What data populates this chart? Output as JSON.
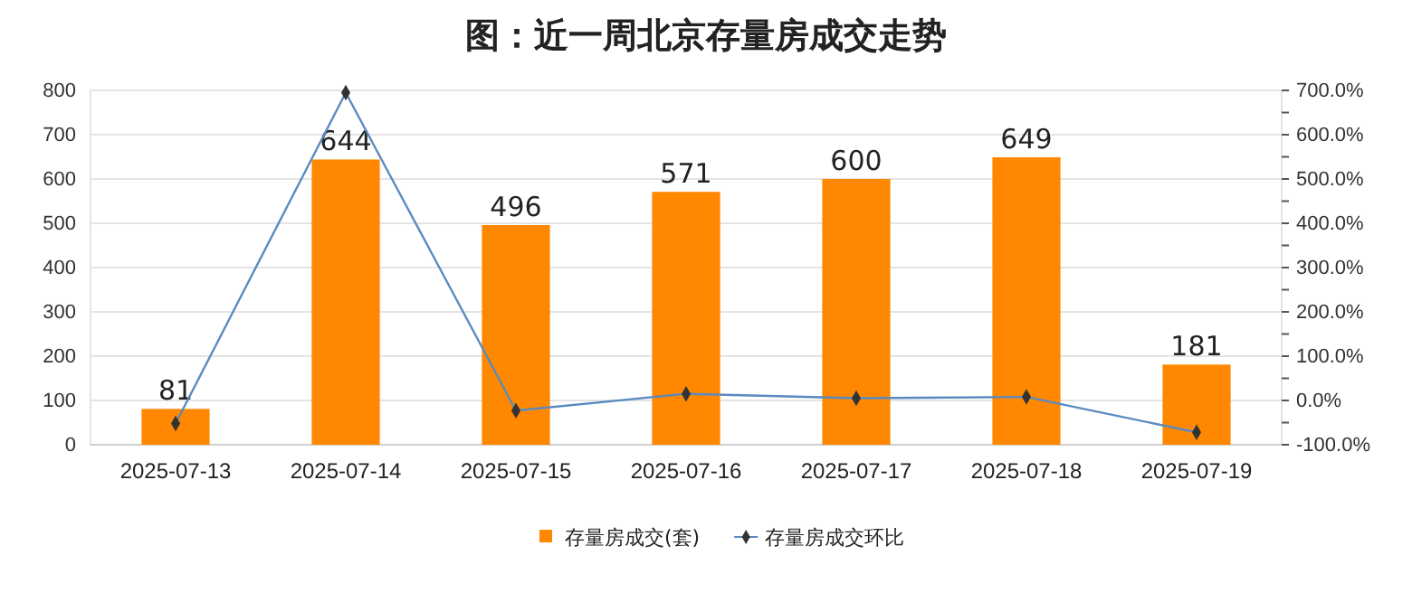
{
  "chart_data": {
    "type": "bar",
    "title": "图：近一周北京存量房成交走势",
    "categories": [
      "2025-07-13",
      "2025-07-14",
      "2025-07-15",
      "2025-07-16",
      "2025-07-17",
      "2025-07-18",
      "2025-07-19"
    ],
    "series": [
      {
        "name": "存量房成交(套)",
        "color": "#ff8800",
        "values": [
          81,
          644,
          496,
          571,
          600,
          649,
          181
        ],
        "data_labels": true
      },
      {
        "name": "存量房成交环比",
        "type": "line",
        "axis": "y2",
        "color": "#5a8ac0",
        "marker": "diamond",
        "values": [
          -52,
          695,
          -23,
          15,
          5,
          8,
          -72
        ]
      }
    ],
    "ylim": [
      0,
      800
    ],
    "yticks": [
      0,
      100,
      200,
      300,
      400,
      500,
      600,
      700,
      800
    ],
    "y2lim": [
      -100,
      700
    ],
    "y2ticks": [
      {
        "value": -100,
        "label": "-100.0%"
      },
      {
        "value": -50,
        "label": null
      },
      {
        "value": 0,
        "label": "0.0%"
      },
      {
        "value": 50,
        "label": null
      },
      {
        "value": 100,
        "label": "100.0%"
      },
      {
        "value": 150,
        "label": null
      },
      {
        "value": 200,
        "label": "200.0%"
      },
      {
        "value": 250,
        "label": null
      },
      {
        "value": 300,
        "label": "300.0%"
      },
      {
        "value": 350,
        "label": null
      },
      {
        "value": 400,
        "label": "400.0%"
      },
      {
        "value": 450,
        "label": null
      },
      {
        "value": 500,
        "label": "500.0%"
      },
      {
        "value": 550,
        "label": null
      },
      {
        "value": 600,
        "label": "600.0%"
      },
      {
        "value": 650,
        "label": null
      },
      {
        "value": 700,
        "label": "700.0%"
      }
    ],
    "grid": "y",
    "legend": "bottom"
  }
}
